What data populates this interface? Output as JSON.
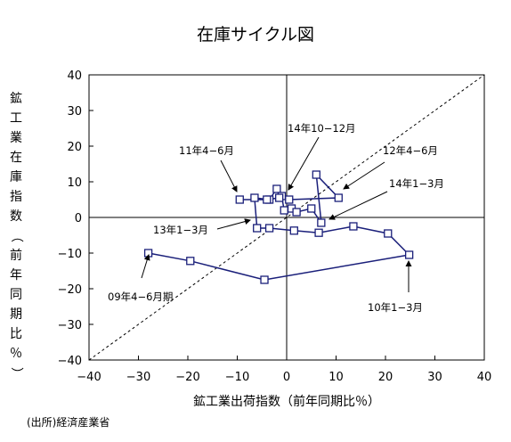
{
  "chart_data": {
    "type": "line",
    "title": "在庫サイクル図",
    "xlabel": "鉱工業出荷指数（前年同期比％）",
    "ylabel": "鉱工業在庫指数（前年同期比％）",
    "source": "(出所)経済産業省",
    "xlim": [
      -40,
      40
    ],
    "ylim": [
      -40,
      40
    ],
    "xticks": [
      -40,
      -30,
      -20,
      -10,
      0,
      10,
      20,
      30,
      40
    ],
    "yticks": [
      -40,
      -30,
      -20,
      -10,
      0,
      10,
      20,
      30,
      40
    ],
    "xtick_labels": [
      "−40",
      "−30",
      "−20",
      "−10",
      "0",
      "10",
      "20",
      "30",
      "40"
    ],
    "ytick_labels": [
      "−40",
      "−30",
      "−20",
      "−10",
      "0",
      "10",
      "20",
      "30",
      "40"
    ],
    "reference_line": "45-degree dashed line",
    "series": [
      {
        "color": "#1a1f7a",
        "marker": "open-square",
        "points": [
          {
            "x": -28,
            "y": -10
          },
          {
            "x": -19.5,
            "y": -12.2
          },
          {
            "x": -4.5,
            "y": -17.5
          },
          {
            "x": 24.8,
            "y": -10.5
          },
          {
            "x": 20.5,
            "y": -4.5
          },
          {
            "x": 13.5,
            "y": -2.5
          },
          {
            "x": 6.5,
            "y": -4.3
          },
          {
            "x": 1.5,
            "y": -3.7
          },
          {
            "x": -3.5,
            "y": -3
          },
          {
            "x": -6,
            "y": -3
          },
          {
            "x": -6.5,
            "y": 5.5
          },
          {
            "x": -3.5,
            "y": 5
          },
          {
            "x": -2,
            "y": 8
          },
          {
            "x": -1,
            "y": 6
          },
          {
            "x": -0.5,
            "y": 2
          },
          {
            "x": 1,
            "y": 2.5
          },
          {
            "x": 2,
            "y": 1.5
          },
          {
            "x": 5,
            "y": 2.5
          },
          {
            "x": 7,
            "y": -1.5
          },
          {
            "x": 6,
            "y": 12
          },
          {
            "x": 10.5,
            "y": 5.5
          },
          {
            "x": 0.5,
            "y": 5
          },
          {
            "x": -1.5,
            "y": 5.5
          },
          {
            "x": -4,
            "y": 5
          },
          {
            "x": -9.5,
            "y": 5
          }
        ]
      }
    ],
    "annotations": [
      {
        "text": "09年4−6月期",
        "anchor": "bottom-left"
      },
      {
        "text": "10年1−3月",
        "anchor": "bottom-right"
      },
      {
        "text": "11年4−6月",
        "anchor": "upper-left"
      },
      {
        "text": "12年4−6月",
        "anchor": "upper-right"
      },
      {
        "text": "13年1−3月",
        "anchor": "lower-left"
      },
      {
        "text": "14年1−3月",
        "anchor": "right"
      },
      {
        "text": "14年10−12月",
        "anchor": "top-center"
      }
    ]
  }
}
